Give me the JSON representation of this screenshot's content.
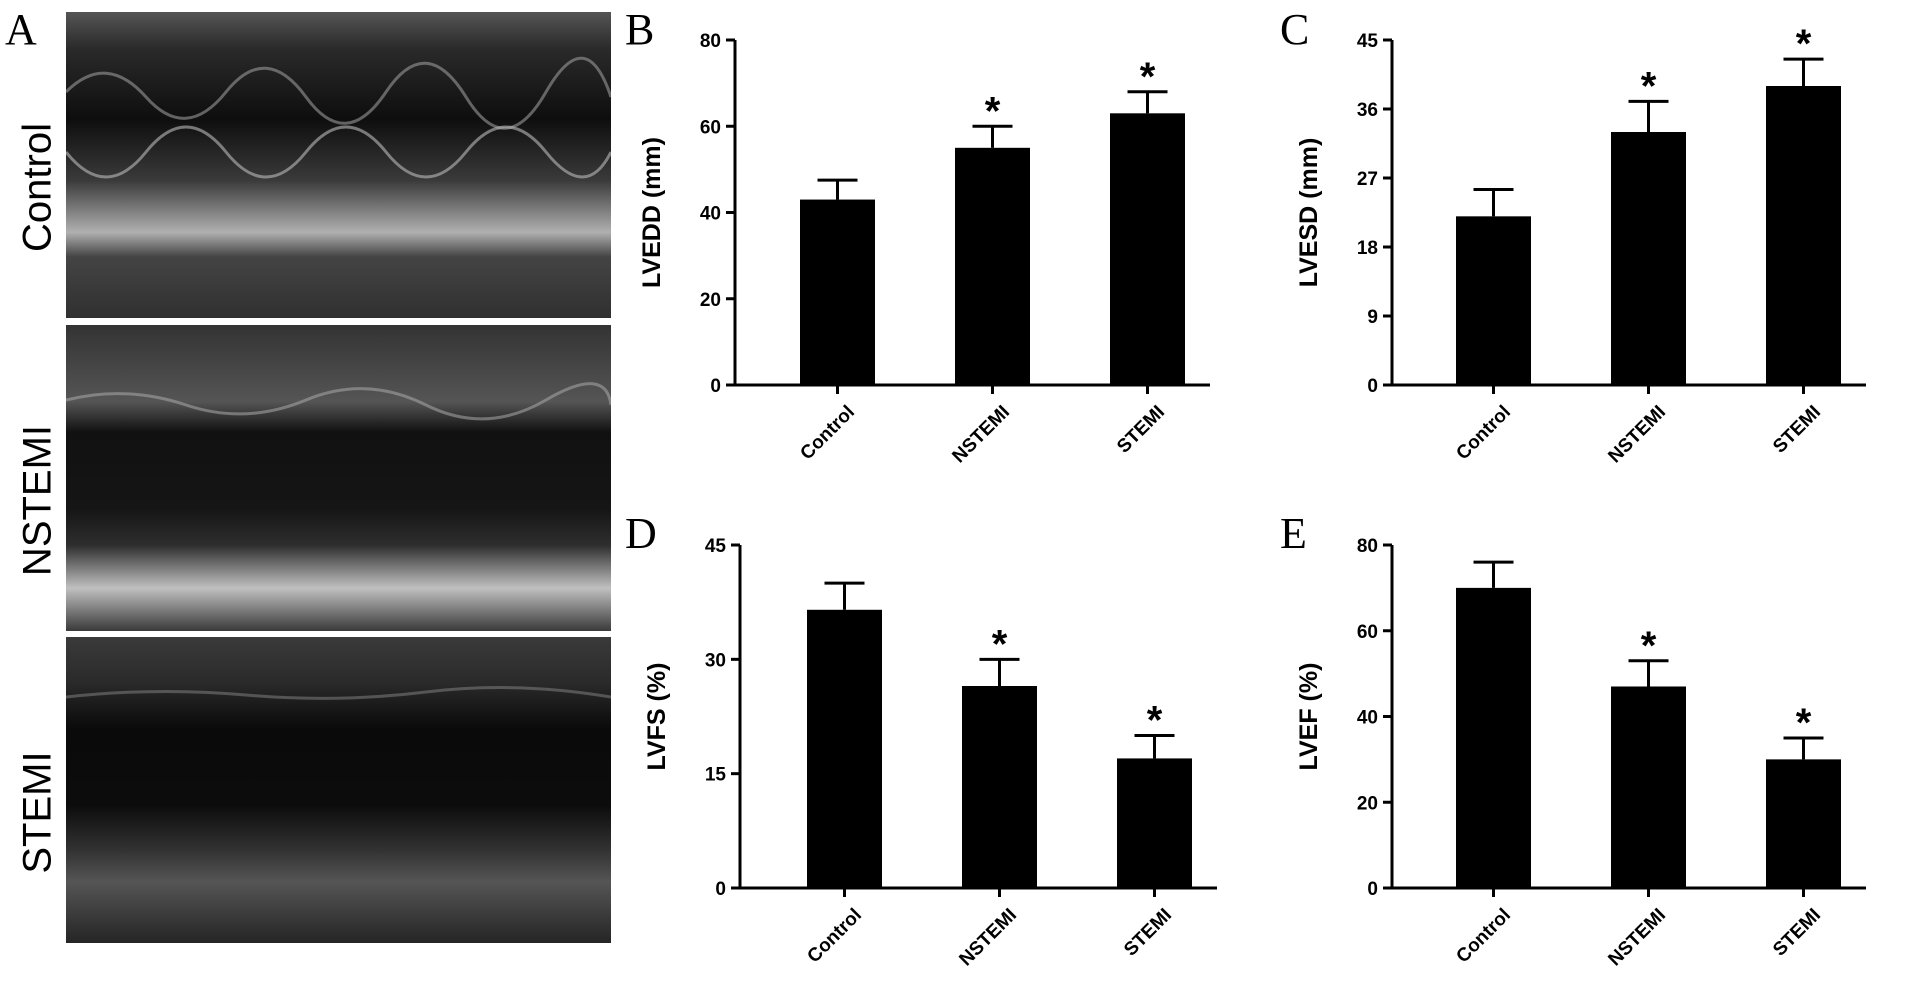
{
  "panels": {
    "a": {
      "letter": "A",
      "rows": [
        "Control",
        "NSTEMI",
        "STEMI"
      ]
    },
    "b": {
      "letter": "B"
    },
    "c": {
      "letter": "C"
    },
    "d": {
      "letter": "D"
    },
    "e": {
      "letter": "E"
    }
  },
  "chart_data": [
    {
      "id": "B",
      "type": "bar",
      "categories": [
        "Control",
        "NSTEMI",
        "STEMI"
      ],
      "values": [
        43,
        55,
        63
      ],
      "errors": [
        4.5,
        5,
        5
      ],
      "significant": [
        false,
        true,
        true
      ],
      "marker": "*",
      "ylabel": "LVEDD (mm)",
      "ylim": [
        0,
        80
      ],
      "yticks": [
        0,
        20,
        40,
        60,
        80
      ]
    },
    {
      "id": "C",
      "type": "bar",
      "categories": [
        "Control",
        "NSTEMI",
        "STEMI"
      ],
      "values": [
        22,
        33,
        39
      ],
      "errors": [
        3.5,
        4,
        3.5
      ],
      "significant": [
        false,
        true,
        true
      ],
      "marker": "*",
      "ylabel": "LVESD (mm)",
      "ylim": [
        0,
        45
      ],
      "yticks": [
        0,
        9,
        18,
        27,
        36,
        45
      ]
    },
    {
      "id": "D",
      "type": "bar",
      "categories": [
        "Control",
        "NSTEMI",
        "STEMI"
      ],
      "values": [
        36.5,
        26.5,
        17
      ],
      "errors": [
        3.5,
        3.5,
        3
      ],
      "significant": [
        false,
        true,
        true
      ],
      "marker": "*",
      "ylabel": "LVFS (%)",
      "ylim": [
        0,
        45
      ],
      "yticks": [
        0,
        15,
        30,
        45
      ]
    },
    {
      "id": "E",
      "type": "bar",
      "categories": [
        "Control",
        "NSTEMI",
        "STEMI"
      ],
      "values": [
        70,
        47,
        30
      ],
      "errors": [
        6,
        6,
        5
      ],
      "significant": [
        false,
        true,
        true
      ],
      "marker": "*",
      "ylabel": "LVEF (%)",
      "ylim": [
        0,
        80
      ],
      "yticks": [
        0,
        20,
        40,
        60,
        80
      ]
    }
  ]
}
